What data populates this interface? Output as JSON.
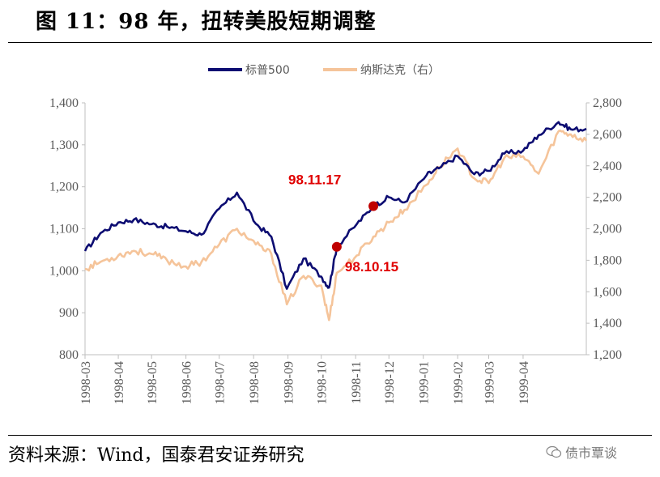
{
  "figure": {
    "title": "图 11：98 年，扭转美股短期调整",
    "source": "资料来源：Wind，国泰君安证券研究",
    "watermark": "债市覃谈",
    "watermark_icon": "wechat-icon"
  },
  "chart_data": {
    "type": "line",
    "title": "",
    "x_tick_labels": [
      "1998-03",
      "1998-04",
      "1998-05",
      "1998-06",
      "1998-07",
      "1998-08",
      "1998-09",
      "1998-10",
      "1998-11",
      "1998-12",
      "1999-01",
      "1999-02",
      "1999-03",
      "1999-04"
    ],
    "ylim_left": [
      800,
      1400
    ],
    "ylim_right": [
      1200,
      2800
    ],
    "yticks_left": [
      "800",
      "900",
      "1,000",
      "1,100",
      "1,200",
      "1,300",
      "1,400"
    ],
    "yticks_right": [
      "1,200",
      "1,400",
      "1,600",
      "1,800",
      "2,000",
      "2,200",
      "2,400",
      "2,600",
      "2,800"
    ],
    "legend_position": "top",
    "grid": false,
    "series": [
      {
        "name": "标普500",
        "axis": "left",
        "color": "#0d0d72",
        "x": [
          "1998-03-02",
          "1998-03-16",
          "1998-04-01",
          "1998-04-15",
          "1998-05-01",
          "1998-05-15",
          "1998-06-01",
          "1998-06-15",
          "1998-07-01",
          "1998-07-17",
          "1998-08-03",
          "1998-08-17",
          "1998-08-31",
          "1998-09-15",
          "1998-10-01",
          "1998-10-08",
          "1998-10-15",
          "1998-11-02",
          "1998-11-17",
          "1998-12-01",
          "1998-12-15",
          "1999-01-04",
          "1999-01-15",
          "1999-02-01",
          "1999-02-16",
          "1999-03-01",
          "1999-03-15",
          "1999-04-01",
          "1999-04-15",
          "1999-05-03",
          "1999-05-14",
          "1999-05-28"
        ],
        "values": [
          1047,
          1090,
          1115,
          1122,
          1111,
          1105,
          1094,
          1086,
          1148,
          1186,
          1112,
          1081,
          957,
          1029,
          986,
          960,
          1057,
          1111,
          1154,
          1175,
          1163,
          1228,
          1244,
          1273,
          1230,
          1238,
          1279,
          1286,
          1323,
          1354,
          1337,
          1338
        ]
      },
      {
        "name": "纳斯达克（右）",
        "axis": "right",
        "color": "#f5c49a",
        "x": [
          "1998-03-02",
          "1998-03-16",
          "1998-04-01",
          "1998-04-15",
          "1998-05-01",
          "1998-05-15",
          "1998-06-01",
          "1998-06-15",
          "1998-07-01",
          "1998-07-17",
          "1998-08-03",
          "1998-08-17",
          "1998-08-31",
          "1998-09-15",
          "1998-10-01",
          "1998-10-08",
          "1998-10-15",
          "1998-11-02",
          "1998-11-17",
          "1998-12-01",
          "1998-12-15",
          "1999-01-04",
          "1999-01-15",
          "1999-02-01",
          "1999-02-16",
          "1999-03-01",
          "1999-03-15",
          "1999-04-01",
          "1999-04-15",
          "1999-05-03",
          "1999-05-14",
          "1999-05-28"
        ],
        "values": [
          1745,
          1790,
          1830,
          1860,
          1840,
          1800,
          1760,
          1790,
          1900,
          2000,
          1900,
          1840,
          1520,
          1700,
          1640,
          1420,
          1720,
          1830,
          1950,
          2040,
          2120,
          2280,
          2390,
          2510,
          2320,
          2290,
          2450,
          2460,
          2350,
          2620,
          2600,
          2560
        ]
      }
    ],
    "annotations": [
      {
        "text": "98.11.17",
        "x": "1998-11-17",
        "y": 1154,
        "marker_color": "#c00000"
      },
      {
        "text": "98.10.15",
        "x": "1998-10-15",
        "y": 1057,
        "marker_color": "#c00000"
      }
    ]
  }
}
